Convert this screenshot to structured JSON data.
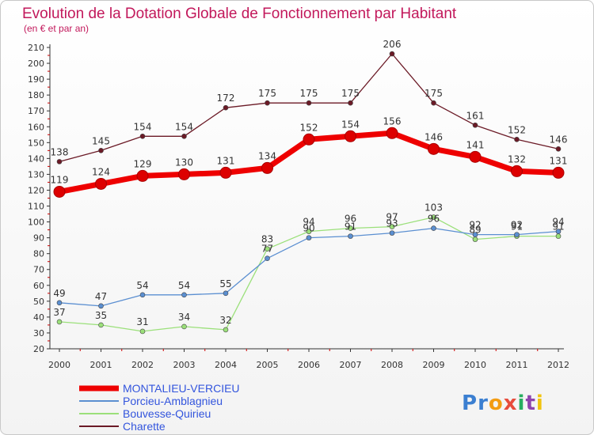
{
  "chart_data": {
    "type": "line",
    "title": "Evolution de la Dotation Globale de Fonctionnement par Habitant",
    "subtitle": "(en € et par an)",
    "xlabel": "",
    "ylabel": "",
    "ylim": [
      20,
      210
    ],
    "yticks": [
      20,
      30,
      40,
      50,
      60,
      70,
      80,
      90,
      100,
      110,
      120,
      130,
      140,
      150,
      160,
      170,
      180,
      190,
      200,
      210
    ],
    "grid": false,
    "categories": [
      "2000",
      "2001",
      "2002",
      "2003",
      "2004",
      "2005",
      "2006",
      "2007",
      "2008",
      "2009",
      "2010",
      "2011",
      "2012"
    ],
    "series": [
      {
        "name": "Charette",
        "color": "#6b1a26",
        "values": [
          138,
          145,
          154,
          154,
          172,
          175,
          175,
          175,
          206,
          175,
          161,
          152,
          146
        ]
      },
      {
        "name": "Bouvesse-Quirieu",
        "color": "#9be07a",
        "values": [
          37,
          35,
          31,
          34,
          32,
          83,
          94,
          96,
          97,
          103,
          89,
          91,
          91
        ]
      },
      {
        "name": "Porcieu-Amblagnieu",
        "color": "#5b8fd1",
        "values": [
          49,
          47,
          54,
          54,
          55,
          77,
          90,
          91,
          93,
          96,
          92,
          92,
          94
        ]
      },
      {
        "name": "MONTALIEU-VERCIEU",
        "color": "#ee0000",
        "values": [
          119,
          124,
          129,
          130,
          131,
          134,
          152,
          154,
          156,
          146,
          141,
          132,
          131
        ]
      }
    ],
    "legend_position": "bottom-left"
  },
  "logo": {
    "text": "Proxiti"
  },
  "colors": {
    "title": "#c2185b",
    "axis": "#333333",
    "tick_red": "#cc0000",
    "legend_text": "#3355dd"
  }
}
